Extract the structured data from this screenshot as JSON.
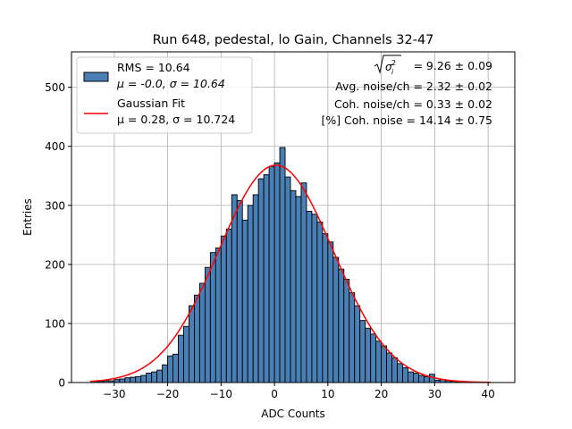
{
  "chart_data": {
    "type": "bar",
    "title": "Run 648, pedestal, lo Gain, Channels 32-47",
    "xlabel": "ADC Counts",
    "ylabel": "Entries",
    "xlim": [
      -38,
      45
    ],
    "ylim": [
      0,
      560
    ],
    "xticks": [
      -30,
      -20,
      -10,
      0,
      10,
      20,
      30,
      40
    ],
    "yticks": [
      0,
      100,
      200,
      300,
      400,
      500
    ],
    "xtick_labels": [
      "−30",
      "−20",
      "−10",
      "0",
      "10",
      "20",
      "30",
      "40"
    ],
    "ytick_labels": [
      "0",
      "100",
      "200",
      "300",
      "400",
      "500"
    ],
    "grid": true,
    "legend_position": "top-left",
    "bin_width": 1,
    "bins_start": -34,
    "hist_values": [
      2,
      2,
      3,
      3,
      5,
      6,
      8,
      9,
      10,
      12,
      16,
      18,
      21,
      30,
      45,
      48,
      80,
      95,
      130,
      148,
      168,
      195,
      220,
      228,
      248,
      260,
      318,
      308,
      275,
      300,
      318,
      345,
      352,
      366,
      372,
      398,
      348,
      325,
      315,
      338,
      290,
      285,
      272,
      252,
      238,
      212,
      192,
      175,
      152,
      130,
      105,
      92,
      82,
      70,
      62,
      50,
      42,
      32,
      25,
      18,
      16,
      12,
      10,
      14,
      4,
      5,
      3,
      2,
      1,
      1,
      1,
      0,
      0,
      0,
      0
    ],
    "series": [
      {
        "name": "RMS = 10.64",
        "name_line2": "μ = -0.0, σ = 10.64",
        "kind": "histogram",
        "color": "#4a7fb5"
      },
      {
        "name": "Gaussian Fit",
        "name_line2": "μ = 0.28, σ = 10.724",
        "kind": "line",
        "color": "#ff0000",
        "mu": 0.28,
        "sigma": 10.724,
        "amplitude": 368,
        "x_range": [
          -34.5,
          40.5
        ]
      }
    ],
    "annotations": [
      "= 9.26 ± 0.09",
      "Avg. noise/ch = 2.32 ± 0.02",
      "Coh. noise/ch = 0.33 ± 0.02",
      "[%] Coh. noise = 14.14 ± 0.75"
    ]
  },
  "colors": {
    "bar_fill": "#4a7fb5",
    "bar_edge": "#000000",
    "fit_line": "#ff0000",
    "grid": "#b0b0b0"
  }
}
